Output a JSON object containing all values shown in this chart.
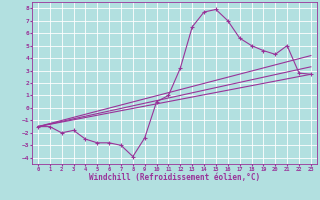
{
  "title": "",
  "xlabel": "Windchill (Refroidissement éolien,°C)",
  "ylabel": "",
  "bg_color": "#b2e0e0",
  "grid_color": "#ffffff",
  "line_color": "#993399",
  "xlim": [
    -0.5,
    23.5
  ],
  "ylim": [
    -4.5,
    8.5
  ],
  "xticks": [
    0,
    1,
    2,
    3,
    4,
    5,
    6,
    7,
    8,
    9,
    10,
    11,
    12,
    13,
    14,
    15,
    16,
    17,
    18,
    19,
    20,
    21,
    22,
    23
  ],
  "yticks": [
    -4,
    -3,
    -2,
    -1,
    0,
    1,
    2,
    3,
    4,
    5,
    6,
    7,
    8
  ],
  "curve_x": [
    0,
    1,
    2,
    3,
    4,
    5,
    6,
    7,
    8,
    9,
    10,
    11,
    12,
    13,
    14,
    15,
    16,
    17,
    18,
    19,
    20,
    21,
    22,
    23
  ],
  "curve_y": [
    -1.5,
    -1.5,
    -2.0,
    -1.8,
    -2.5,
    -2.8,
    -2.8,
    -3.0,
    -3.9,
    -2.4,
    0.5,
    1.0,
    3.2,
    6.5,
    7.7,
    7.9,
    7.0,
    5.6,
    5.0,
    4.6,
    4.3,
    5.0,
    2.8,
    2.7
  ],
  "line1_x": [
    0,
    23
  ],
  "line1_y": [
    -1.5,
    2.7
  ],
  "line2_x": [
    0,
    23
  ],
  "line2_y": [
    -1.5,
    3.3
  ],
  "line3_x": [
    0,
    23
  ],
  "line3_y": [
    -1.5,
    4.2
  ],
  "marker": "+",
  "markersize": 3,
  "linewidth": 0.8
}
